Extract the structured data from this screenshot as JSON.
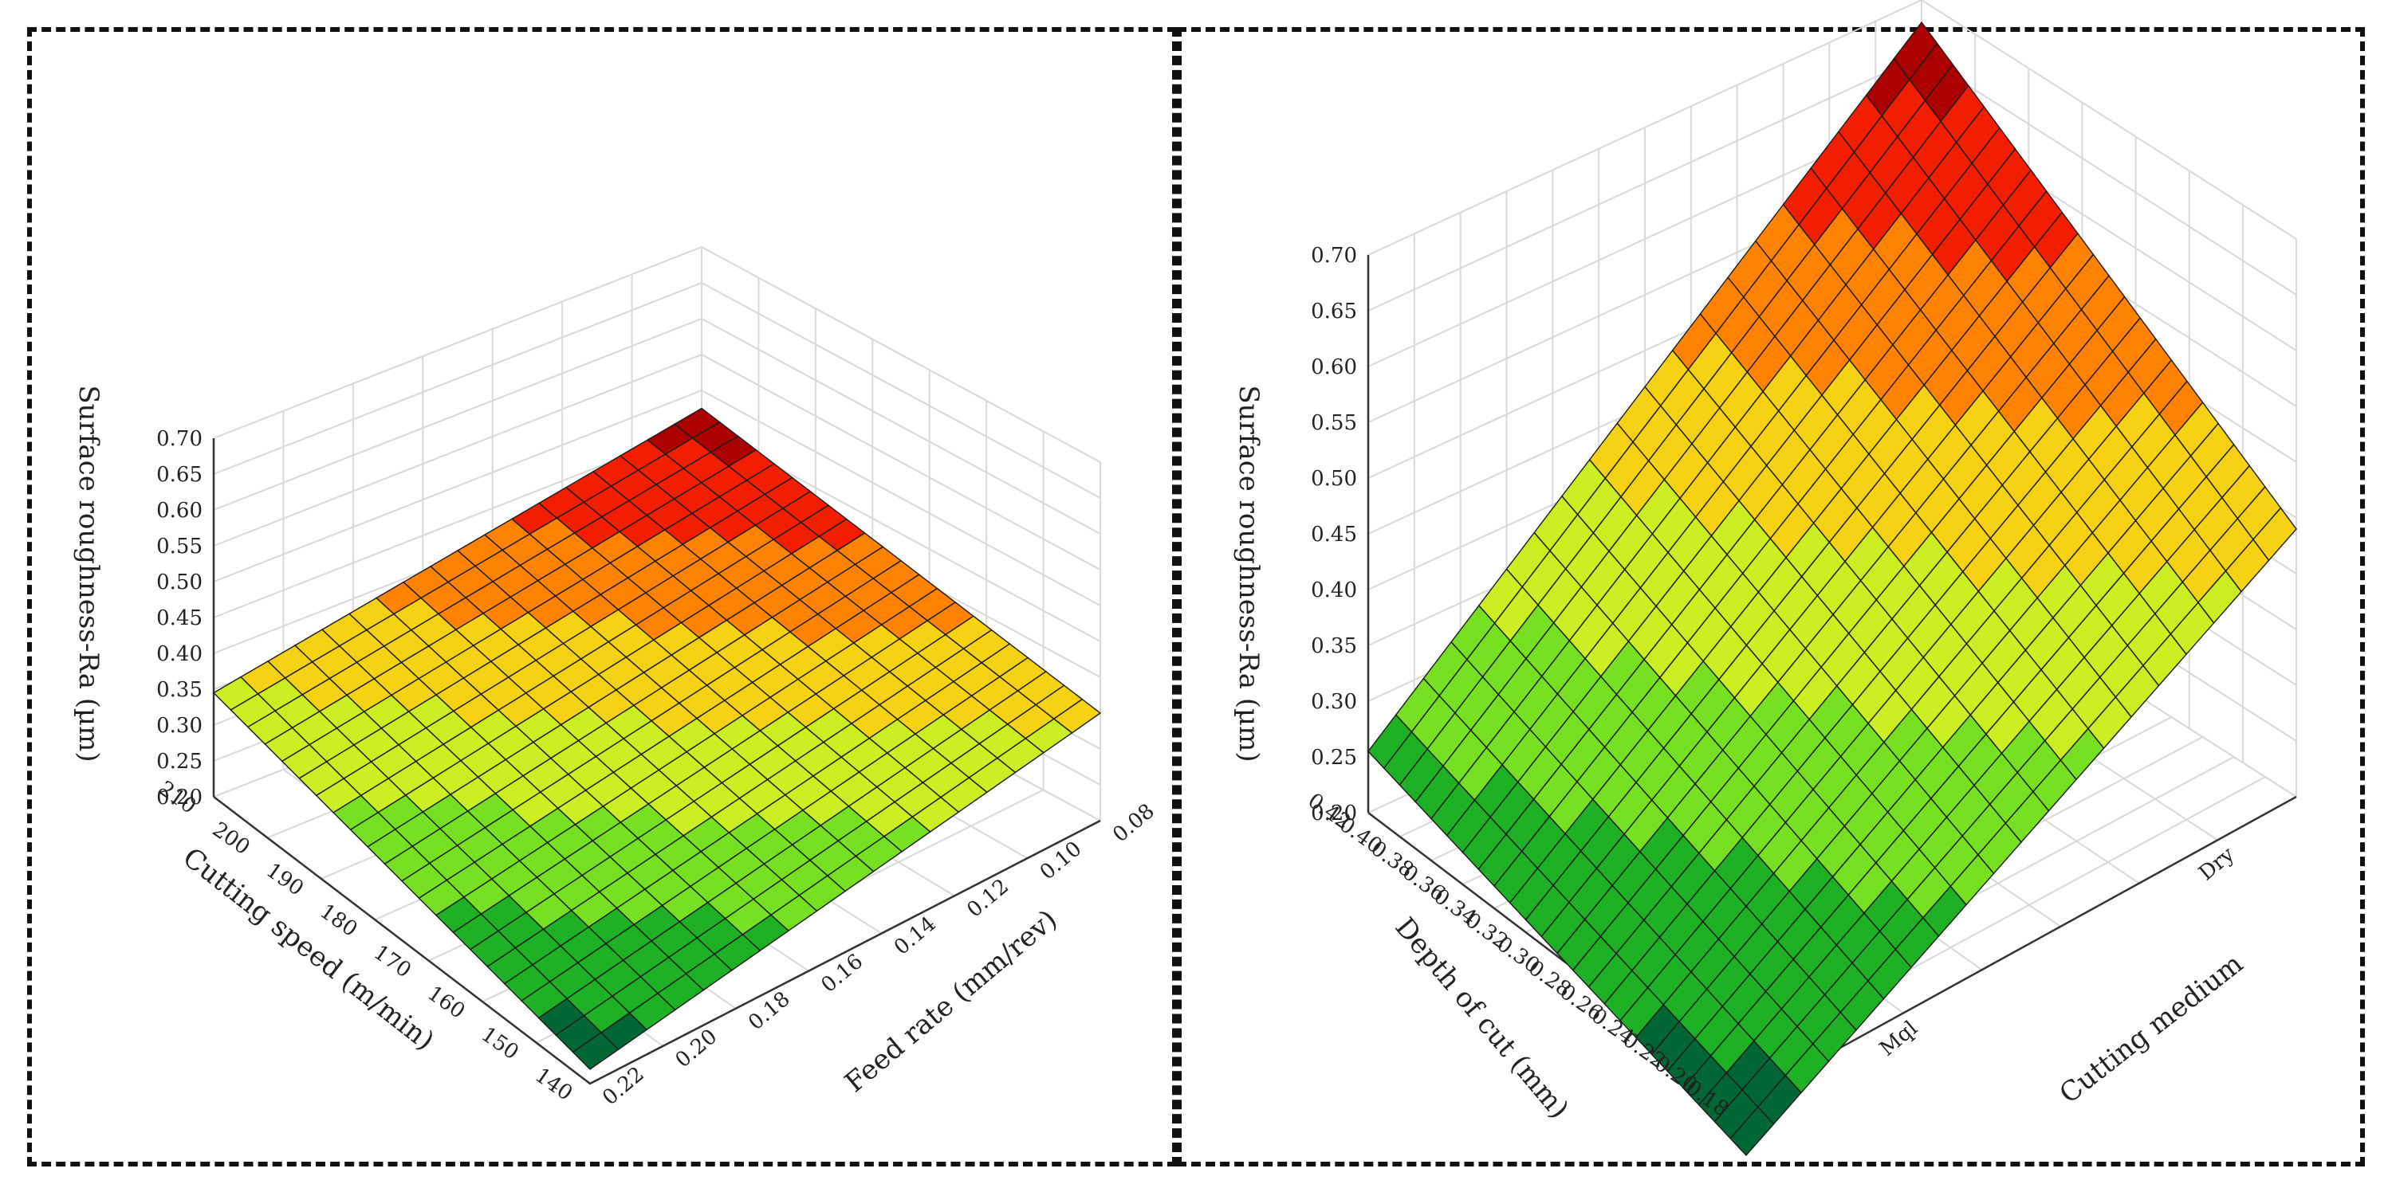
{
  "chart_data": [
    {
      "type": "surface3d",
      "title": "",
      "xlabel": "Cutting speed (m/min)",
      "ylabel": "Feed rate (mm/rev)",
      "zlabel": "Surface roughness-Ra (µm)",
      "x_ticks": [
        "210",
        "200",
        "190",
        "180",
        "170",
        "160",
        "150",
        "140"
      ],
      "y_ticks": [
        "0.22",
        "0.20",
        "0.18",
        "0.16",
        "0.14",
        "0.12",
        "0.10",
        "0.08"
      ],
      "z_ticks": [
        "0.20",
        "0.25",
        "0.30",
        "0.35",
        "0.40",
        "0.45",
        "0.50",
        "0.55",
        "0.60",
        "0.65",
        "0.70"
      ],
      "xlim": [
        140,
        210
      ],
      "ylim": [
        0.08,
        0.22
      ],
      "zlim": [
        0.2,
        0.7
      ],
      "grid": true,
      "corner_values": [
        {
          "x": 140,
          "y": 0.08,
          "z": 0.35
        },
        {
          "x": 140,
          "y": 0.22,
          "z": 0.24
        },
        {
          "x": 210,
          "y": 0.08,
          "z": 0.45
        },
        {
          "x": 210,
          "y": 0.22,
          "z": 0.35
        }
      ],
      "colorscale": [
        "#006633",
        "#22bb22",
        "#99ee22",
        "#eeee22",
        "#ffaa00",
        "#ff2200",
        "#aa0000"
      ]
    },
    {
      "type": "surface3d",
      "title": "",
      "xlabel": "Depth of cut (mm)",
      "ylabel": "Cutting medium",
      "zlabel": "Surface roughness-Ra (µm)",
      "x_ticks": [
        "0.42",
        "0.40",
        "0.38",
        "0.36",
        "0.34",
        "0.32",
        "0.30",
        "0.28",
        "0.26",
        "0.24",
        "0.22",
        "0.20",
        "0.18"
      ],
      "y_ticks": [
        "Mql",
        "Dry"
      ],
      "z_ticks": [
        "0.20",
        "0.25",
        "0.30",
        "0.35",
        "0.40",
        "0.45",
        "0.50",
        "0.55",
        "0.60",
        "0.65",
        "0.70"
      ],
      "xlim": [
        0.18,
        0.42
      ],
      "ylim": [
        "Mql",
        "Dry"
      ],
      "zlim": [
        0.2,
        0.7
      ],
      "grid": true,
      "corner_values": [
        {
          "x": 0.18,
          "y": "Mql",
          "z": 0.15
        },
        {
          "x": 0.42,
          "y": "Mql",
          "z": 0.25
        },
        {
          "x": 0.18,
          "y": "Dry",
          "z": 0.44
        },
        {
          "x": 0.42,
          "y": "Dry",
          "z": 0.68
        }
      ],
      "colorscale": [
        "#006633",
        "#22bb22",
        "#99ee22",
        "#eeee22",
        "#ffaa00",
        "#ff2200",
        "#aa0000"
      ]
    }
  ]
}
